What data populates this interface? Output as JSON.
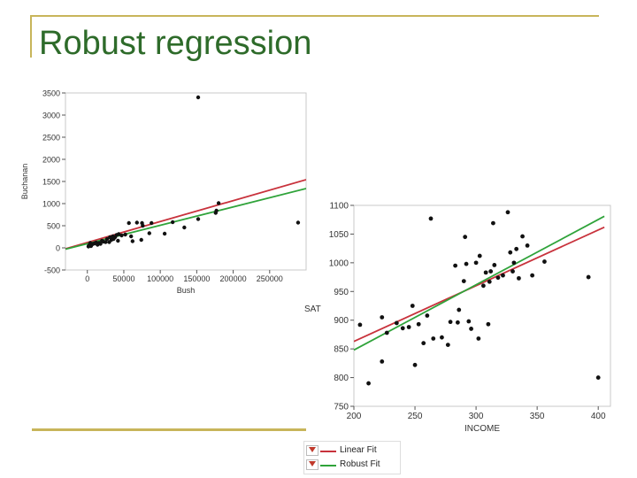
{
  "slide": {
    "title": "Robust regression"
  },
  "colors": {
    "linear_fit": "#c8323c",
    "robust_fit": "#2fa33a",
    "title": "#2e6b2a",
    "frame": "#c8b55a"
  },
  "legend": {
    "items": [
      {
        "label": "Linear Fit",
        "color": "#c8323c"
      },
      {
        "label": "Robust Fit",
        "color": "#2fa33a"
      }
    ]
  },
  "chart_data": [
    {
      "type": "scatter",
      "title": "",
      "xlabel": "Bush",
      "ylabel": "Buchanan",
      "xlim": [
        -30000,
        300000
      ],
      "ylim": [
        -500,
        3500
      ],
      "xticks": [
        0,
        50000,
        100000,
        150000,
        200000,
        250000
      ],
      "xtick_labels": [
        "0",
        "50000",
        "100000",
        "150000",
        "200000",
        "250000"
      ],
      "yticks": [
        -500,
        0,
        500,
        1000,
        1500,
        2000,
        2500,
        3000,
        3500
      ],
      "ytick_labels": [
        "-500",
        "0",
        "500",
        "1000",
        "1500",
        "2000",
        "2500",
        "3000",
        "3500"
      ],
      "points": [
        [
          152000,
          3400
        ],
        [
          289000,
          570
        ],
        [
          180000,
          1010
        ],
        [
          177000,
          840
        ],
        [
          176000,
          790
        ],
        [
          152000,
          650
        ],
        [
          133000,
          460
        ],
        [
          106000,
          320
        ],
        [
          117000,
          580
        ],
        [
          88000,
          560
        ],
        [
          75000,
          560
        ],
        [
          76000,
          500
        ],
        [
          68000,
          570
        ],
        [
          85000,
          330
        ],
        [
          74000,
          180
        ],
        [
          62000,
          150
        ],
        [
          57000,
          560
        ],
        [
          52000,
          300
        ],
        [
          47000,
          280
        ],
        [
          43000,
          310
        ],
        [
          40000,
          290
        ],
        [
          38000,
          240
        ],
        [
          35000,
          260
        ],
        [
          33000,
          180
        ],
        [
          30000,
          130
        ],
        [
          27000,
          200
        ],
        [
          25000,
          130
        ],
        [
          22000,
          140
        ],
        [
          20000,
          160
        ],
        [
          18000,
          90
        ],
        [
          16000,
          110
        ],
        [
          14000,
          70
        ],
        [
          12000,
          120
        ],
        [
          10000,
          100
        ],
        [
          8000,
          90
        ],
        [
          6000,
          70
        ],
        [
          5000,
          40
        ],
        [
          4000,
          110
        ],
        [
          3000,
          60
        ],
        [
          2000,
          50
        ],
        [
          1500,
          30
        ],
        [
          42000,
          160
        ],
        [
          36000,
          200
        ],
        [
          31000,
          240
        ],
        [
          60000,
          260
        ]
      ],
      "lines": [
        {
          "name": "Linear Fit",
          "color": "#c8323c",
          "x": [
            -30000,
            300000
          ],
          "y": [
            -20,
            1540
          ]
        },
        {
          "name": "Robust Fit",
          "color": "#2fa33a",
          "x": [
            -30000,
            300000
          ],
          "y": [
            -30,
            1340
          ]
        }
      ]
    },
    {
      "type": "scatter",
      "title": "",
      "xlabel": "INCOME",
      "ylabel": "SAT",
      "xlim": [
        200,
        410
      ],
      "ylim": [
        750,
        1100
      ],
      "xticks": [
        200,
        250,
        300,
        350,
        400
      ],
      "xtick_labels": [
        "200",
        "250",
        "300",
        "350",
        "400"
      ],
      "yticks": [
        750,
        800,
        850,
        900,
        950,
        1000,
        1050,
        1100
      ],
      "ytick_labels": [
        "750",
        "800",
        "850",
        "900",
        "950",
        "1000",
        "1050",
        "1100"
      ],
      "points": [
        [
          212,
          790
        ],
        [
          223,
          828
        ],
        [
          223,
          905
        ],
        [
          227,
          878
        ],
        [
          235,
          895
        ],
        [
          240,
          886
        ],
        [
          245,
          888
        ],
        [
          248,
          925
        ],
        [
          250,
          822
        ],
        [
          253,
          893
        ],
        [
          257,
          860
        ],
        [
          260,
          908
        ],
        [
          263,
          1077
        ],
        [
          265,
          868
        ],
        [
          272,
          870
        ],
        [
          277,
          857
        ],
        [
          279,
          897
        ],
        [
          283,
          995
        ],
        [
          285,
          896
        ],
        [
          286,
          918
        ],
        [
          290,
          968
        ],
        [
          291,
          1045
        ],
        [
          292,
          998
        ],
        [
          294,
          898
        ],
        [
          296,
          885
        ],
        [
          300,
          1000
        ],
        [
          302,
          868
        ],
        [
          303,
          1012
        ],
        [
          306,
          960
        ],
        [
          308,
          983
        ],
        [
          310,
          893
        ],
        [
          311,
          967
        ],
        [
          312,
          985
        ],
        [
          314,
          1069
        ],
        [
          315,
          996
        ],
        [
          318,
          974
        ],
        [
          322,
          978
        ],
        [
          326,
          1088
        ],
        [
          328,
          1018
        ],
        [
          330,
          985
        ],
        [
          331,
          1000
        ],
        [
          333,
          1024
        ],
        [
          335,
          973
        ],
        [
          338,
          1046
        ],
        [
          342,
          1030
        ],
        [
          346,
          978
        ],
        [
          356,
          1002
        ],
        [
          392,
          975
        ],
        [
          400,
          800
        ],
        [
          205,
          892
        ]
      ],
      "lines": [
        {
          "name": "Linear Fit",
          "color": "#c8323c",
          "x": [
            200,
            405
          ],
          "y": [
            863,
            1062
          ]
        },
        {
          "name": "Robust Fit",
          "color": "#2fa33a",
          "x": [
            200,
            405
          ],
          "y": [
            848,
            1081
          ]
        }
      ]
    }
  ]
}
